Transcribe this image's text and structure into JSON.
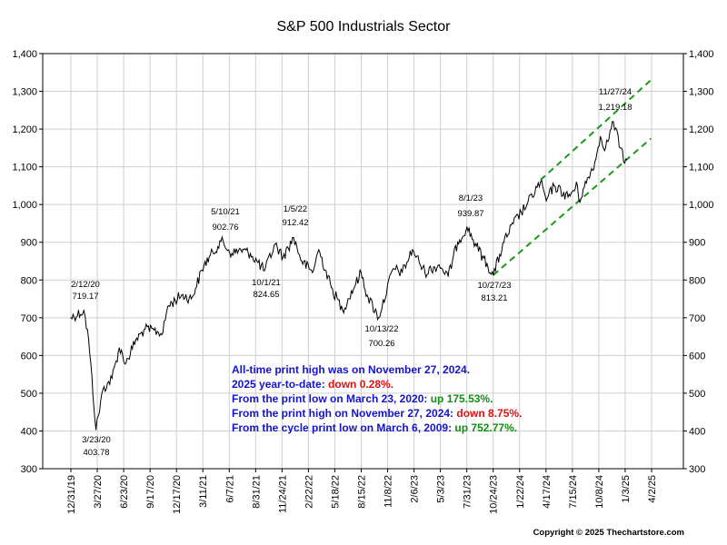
{
  "chart_data": {
    "type": "line",
    "title": "S&P 500 Industrials Sector",
    "xlabel": "",
    "ylabel": "",
    "ylim": [
      300,
      1400
    ],
    "y_ticks": [
      "300",
      "400",
      "500",
      "600",
      "700",
      "800",
      "900",
      "1,000",
      "1,100",
      "1,200",
      "1,300",
      "1,400"
    ],
    "x_ticks": [
      "12/31/19",
      "3/27/20",
      "6/23/20",
      "9/17/20",
      "12/17/20",
      "3/11/21",
      "6/7/21",
      "8/31/21",
      "11/24/21",
      "2/22/22",
      "5/18/22",
      "8/15/22",
      "11/8/22",
      "2/6/23",
      "5/3/23",
      "7/31/23",
      "10/24/23",
      "1/22/24",
      "4/17/24",
      "7/15/24",
      "10/8/24",
      "1/3/25",
      "4/2/25"
    ],
    "grid": true,
    "series": [
      {
        "values": [
          [
            "2019-12-31",
            700
          ],
          [
            "2020-02-12",
            719.17
          ],
          [
            "2020-02-28",
            640
          ],
          [
            "2020-03-23",
            403.78
          ],
          [
            "2020-04-15",
            510
          ],
          [
            "2020-05-15",
            540
          ],
          [
            "2020-06-08",
            620
          ],
          [
            "2020-06-30",
            580
          ],
          [
            "2020-08-01",
            640
          ],
          [
            "2020-09-01",
            670
          ],
          [
            "2020-10-30",
            660
          ],
          [
            "2020-11-15",
            730
          ],
          [
            "2020-12-31",
            760
          ],
          [
            "2021-02-01",
            750
          ],
          [
            "2021-03-15",
            840
          ],
          [
            "2021-05-10",
            902.76
          ],
          [
            "2021-06-15",
            870
          ],
          [
            "2021-07-15",
            880
          ],
          [
            "2021-08-15",
            870
          ],
          [
            "2021-10-01",
            824.65
          ],
          [
            "2021-11-05",
            895
          ],
          [
            "2021-12-01",
            860
          ],
          [
            "2022-01-05",
            912.42
          ],
          [
            "2022-02-01",
            850
          ],
          [
            "2022-03-08",
            820
          ],
          [
            "2022-03-29",
            880
          ],
          [
            "2022-05-10",
            780
          ],
          [
            "2022-06-16",
            720
          ],
          [
            "2022-08-16",
            820
          ],
          [
            "2022-09-05",
            760
          ],
          [
            "2022-10-13",
            700.26
          ],
          [
            "2022-11-30",
            830
          ],
          [
            "2022-12-30",
            820
          ],
          [
            "2023-02-02",
            880
          ],
          [
            "2023-03-15",
            820
          ],
          [
            "2023-05-01",
            840
          ],
          [
            "2023-05-31",
            810
          ],
          [
            "2023-07-01",
            900
          ],
          [
            "2023-08-01",
            939.87
          ],
          [
            "2023-09-01",
            890
          ],
          [
            "2023-10-27",
            813.21
          ],
          [
            "2023-12-01",
            900
          ],
          [
            "2024-01-01",
            950
          ],
          [
            "2024-02-15",
            1000
          ],
          [
            "2024-03-31",
            1060
          ],
          [
            "2024-04-19",
            1010
          ],
          [
            "2024-05-15",
            1050
          ],
          [
            "2024-06-30",
            1020
          ],
          [
            "2024-07-31",
            1050
          ],
          [
            "2024-08-05",
            1010
          ],
          [
            "2024-09-30",
            1120
          ],
          [
            "2024-10-15",
            1180
          ],
          [
            "2024-11-01",
            1150
          ],
          [
            "2024-11-27",
            1219.18
          ],
          [
            "2024-12-20",
            1150
          ],
          [
            "2025-01-03",
            1110
          ],
          [
            "2025-01-10",
            1120
          ]
        ]
      }
    ],
    "annotations": [
      {
        "date": "2/12/20",
        "value": "719.17"
      },
      {
        "date": "3/23/20",
        "value": "403.78"
      },
      {
        "date": "5/10/21",
        "value": "902.76"
      },
      {
        "date": "10/1/21",
        "value": "824.65"
      },
      {
        "date": "1/5/22",
        "value": "912.42"
      },
      {
        "date": "10/13/22",
        "value": "700.26"
      },
      {
        "date": "8/1/23",
        "value": "939.87"
      },
      {
        "date": "10/27/23",
        "value": "813.21"
      },
      {
        "date": "11/27/24",
        "value": "1,219.18"
      }
    ],
    "trend_channel": {
      "color": "#1a9a1a",
      "lower": [
        [
          "2023-10-27",
          813
        ],
        [
          "2025-03-31",
          1175
        ]
      ],
      "upper": [
        [
          "2024-03-31",
          1065
        ],
        [
          "2025-03-31",
          1330
        ]
      ]
    },
    "notes": [
      [
        {
          "text": "All-time print high was on November 27, 2024.",
          "color": "#1414cc"
        }
      ],
      [
        {
          "text": "2025 year-to-date:  ",
          "color": "#1414cc"
        },
        {
          "text": "down 0.28%.",
          "color": "#e01010"
        }
      ],
      [
        {
          "text": "From the print low on March 23, 2020:  ",
          "color": "#1414cc"
        },
        {
          "text": "up 175.53%.",
          "color": "#158c15"
        }
      ],
      [
        {
          "text": "From the print high on November 27, 2024:  ",
          "color": "#1414cc"
        },
        {
          "text": "down 8.75%.",
          "color": "#e01010"
        }
      ],
      [
        {
          "text": "From the cycle print low on March 6, 2009:  ",
          "color": "#1414cc"
        },
        {
          "text": "up 752.77%.",
          "color": "#158c15"
        }
      ]
    ],
    "copyright": "Copyright © 2025 Thechartstore.com"
  }
}
